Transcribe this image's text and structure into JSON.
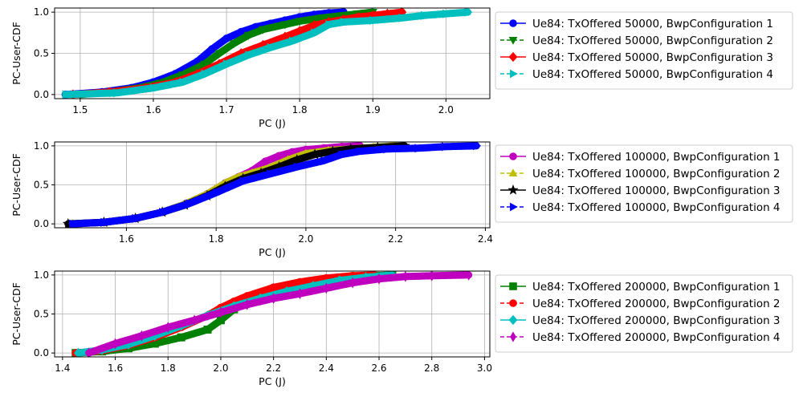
{
  "chart_data": [
    {
      "type": "line",
      "title": "",
      "xlabel": "PC (J)",
      "ylabel": "PC-User-CDF",
      "xlim": [
        1.465,
        2.06
      ],
      "ylim": [
        -0.05,
        1.05
      ],
      "xticks": [
        1.5,
        1.6,
        1.7,
        1.8,
        1.9,
        2.0
      ],
      "xtick_labels": [
        "1.5",
        "1.6",
        "1.7",
        "1.8",
        "1.9",
        "2.0"
      ],
      "yticks": [
        0.0,
        0.5,
        1.0
      ],
      "ytick_labels": [
        "0.0",
        "0.5",
        "1.0"
      ],
      "grid": true,
      "legend_position": "outside-right",
      "series": [
        {
          "name": "Ue84: TxOffered 50000, BwpConfiguration 1",
          "color": "#0000ff",
          "linestyle": "solid",
          "marker": "circle",
          "x": [
            1.48,
            1.53,
            1.57,
            1.6,
            1.63,
            1.66,
            1.68,
            1.7,
            1.72,
            1.74,
            1.76,
            1.78,
            1.8,
            1.82,
            1.84,
            1.86
          ],
          "y": [
            0.0,
            0.03,
            0.08,
            0.15,
            0.25,
            0.4,
            0.55,
            0.68,
            0.76,
            0.82,
            0.86,
            0.9,
            0.94,
            0.97,
            0.99,
            1.0
          ]
        },
        {
          "name": "Ue84: TxOffered 50000, BwpConfiguration 2",
          "color": "#008000",
          "linestyle": "dashed",
          "marker": "triangle-down",
          "x": [
            1.5,
            1.54,
            1.58,
            1.61,
            1.64,
            1.67,
            1.69,
            1.71,
            1.73,
            1.75,
            1.78,
            1.8,
            1.83,
            1.86,
            1.88,
            1.9
          ],
          "y": [
            0.0,
            0.03,
            0.08,
            0.14,
            0.24,
            0.37,
            0.5,
            0.62,
            0.72,
            0.79,
            0.85,
            0.89,
            0.93,
            0.96,
            0.98,
            1.0
          ]
        },
        {
          "name": "Ue84: TxOffered 50000, BwpConfiguration 3",
          "color": "#ff0000",
          "linestyle": "solid",
          "marker": "diamond",
          "x": [
            1.49,
            1.54,
            1.59,
            1.63,
            1.66,
            1.69,
            1.72,
            1.75,
            1.78,
            1.8,
            1.82,
            1.84,
            1.86,
            1.88,
            1.9,
            1.92,
            1.94
          ],
          "y": [
            0.0,
            0.03,
            0.08,
            0.15,
            0.25,
            0.37,
            0.5,
            0.6,
            0.7,
            0.77,
            0.84,
            0.88,
            0.91,
            0.94,
            0.96,
            0.98,
            1.0
          ]
        },
        {
          "name": "Ue84: TxOffered 50000, BwpConfiguration 4",
          "color": "#00bfbf",
          "linestyle": "dashed",
          "marker": "triangle-right",
          "x": [
            1.48,
            1.55,
            1.6,
            1.64,
            1.67,
            1.7,
            1.73,
            1.76,
            1.79,
            1.82,
            1.84,
            1.86,
            1.9,
            1.94,
            1.97,
            2.0,
            2.03
          ],
          "y": [
            0.0,
            0.02,
            0.08,
            0.15,
            0.25,
            0.37,
            0.48,
            0.57,
            0.65,
            0.75,
            0.85,
            0.88,
            0.9,
            0.93,
            0.96,
            0.98,
            1.0
          ]
        }
      ]
    },
    {
      "type": "line",
      "title": "",
      "xlabel": "PC (J)",
      "ylabel": "PC-User-CDF",
      "xlim": [
        1.44,
        2.41
      ],
      "ylim": [
        -0.05,
        1.05
      ],
      "xticks": [
        1.6,
        1.8,
        2.0,
        2.2,
        2.4
      ],
      "xtick_labels": [
        "1.6",
        "1.8",
        "2.0",
        "2.2",
        "2.4"
      ],
      "yticks": [
        0.0,
        0.5,
        1.0
      ],
      "ytick_labels": [
        "0.0",
        "0.5",
        "1.0"
      ],
      "grid": true,
      "legend_position": "outside-right",
      "series": [
        {
          "name": "Ue84: TxOffered 100000, BwpConfiguration 1",
          "color": "#bf00bf",
          "linestyle": "solid",
          "marker": "hexagon",
          "x": [
            1.48,
            1.55,
            1.62,
            1.68,
            1.73,
            1.78,
            1.82,
            1.85,
            1.88,
            1.91,
            1.94,
            1.97,
            2.0,
            2.04,
            2.08,
            2.12
          ],
          "y": [
            0.0,
            0.02,
            0.07,
            0.15,
            0.25,
            0.38,
            0.52,
            0.6,
            0.68,
            0.8,
            0.87,
            0.92,
            0.95,
            0.97,
            0.99,
            1.0
          ]
        },
        {
          "name": "Ue84: TxOffered 100000, BwpConfiguration 2",
          "color": "#bfbf00",
          "linestyle": "dashed",
          "marker": "triangle-up",
          "x": [
            1.48,
            1.55,
            1.62,
            1.68,
            1.73,
            1.78,
            1.82,
            1.85,
            1.88,
            1.92,
            1.96,
            2.0,
            2.05,
            2.1,
            2.15,
            2.2
          ],
          "y": [
            0.0,
            0.02,
            0.07,
            0.15,
            0.25,
            0.38,
            0.52,
            0.6,
            0.65,
            0.72,
            0.82,
            0.9,
            0.94,
            0.96,
            0.98,
            1.0
          ]
        },
        {
          "name": "Ue84: TxOffered 100000, BwpConfiguration 3",
          "color": "#000000",
          "linestyle": "solid",
          "marker": "star",
          "x": [
            1.47,
            1.55,
            1.62,
            1.68,
            1.73,
            1.78,
            1.82,
            1.86,
            1.9,
            1.94,
            1.98,
            2.02,
            2.06,
            2.1,
            2.16,
            2.22
          ],
          "y": [
            0.0,
            0.02,
            0.07,
            0.15,
            0.24,
            0.36,
            0.48,
            0.58,
            0.65,
            0.73,
            0.82,
            0.89,
            0.93,
            0.96,
            0.98,
            1.0
          ]
        },
        {
          "name": "Ue84: TxOffered 100000, BwpConfiguration 4",
          "color": "#0000ff",
          "linestyle": "dashed",
          "marker": "triangle-right",
          "x": [
            1.48,
            1.55,
            1.62,
            1.68,
            1.74,
            1.8,
            1.86,
            1.92,
            1.98,
            2.04,
            2.08,
            2.12,
            2.18,
            2.25,
            2.31,
            2.38
          ],
          "y": [
            0.0,
            0.02,
            0.07,
            0.15,
            0.26,
            0.4,
            0.55,
            0.64,
            0.73,
            0.81,
            0.89,
            0.93,
            0.96,
            0.97,
            0.99,
            1.0
          ]
        }
      ]
    },
    {
      "type": "line",
      "title": "",
      "xlabel": "PC (J)",
      "ylabel": "PC-User-CDF",
      "xlim": [
        1.37,
        3.02
      ],
      "ylim": [
        -0.05,
        1.05
      ],
      "xticks": [
        1.4,
        1.6,
        1.8,
        2.0,
        2.2,
        2.4,
        2.6,
        2.8,
        3.0
      ],
      "xtick_labels": [
        "1.4",
        "1.6",
        "1.8",
        "2.0",
        "2.2",
        "2.4",
        "2.6",
        "2.8",
        "3.0"
      ],
      "yticks": [
        0.0,
        0.5,
        1.0
      ],
      "ytick_labels": [
        "0.0",
        "0.5",
        "1.0"
      ],
      "grid": true,
      "legend_position": "outside-right",
      "series": [
        {
          "name": "Ue84: TxOffered 200000, BwpConfiguration 1",
          "color": "#008000",
          "linestyle": "solid",
          "marker": "square",
          "x": [
            1.45,
            1.55,
            1.65,
            1.75,
            1.85,
            1.95,
            2.0,
            2.05,
            2.1,
            2.2,
            2.3,
            2.4,
            2.5,
            2.58,
            2.65
          ],
          "y": [
            0.0,
            0.02,
            0.06,
            0.12,
            0.2,
            0.3,
            0.42,
            0.56,
            0.65,
            0.75,
            0.85,
            0.92,
            0.96,
            0.99,
            1.0
          ]
        },
        {
          "name": "Ue84: TxOffered 200000, BwpConfiguration 2",
          "color": "#ff0000",
          "linestyle": "dashed",
          "marker": "octagon",
          "x": [
            1.45,
            1.55,
            1.65,
            1.75,
            1.85,
            1.95,
            2.0,
            2.05,
            2.1,
            2.2,
            2.3,
            2.4,
            2.5,
            2.58
          ],
          "y": [
            0.0,
            0.03,
            0.1,
            0.2,
            0.33,
            0.48,
            0.58,
            0.66,
            0.73,
            0.84,
            0.91,
            0.96,
            0.99,
            1.0
          ]
        },
        {
          "name": "Ue84: TxOffered 200000, BwpConfiguration 3",
          "color": "#00bfbf",
          "linestyle": "solid",
          "marker": "diamond",
          "x": [
            1.46,
            1.55,
            1.65,
            1.75,
            1.85,
            1.95,
            2.05,
            2.15,
            2.25,
            2.35,
            2.45,
            2.55,
            2.65
          ],
          "y": [
            0.0,
            0.04,
            0.11,
            0.22,
            0.35,
            0.48,
            0.6,
            0.7,
            0.79,
            0.86,
            0.93,
            0.97,
            1.0
          ]
        },
        {
          "name": "Ue84: TxOffered 200000, BwpConfiguration 4",
          "color": "#bf00bf",
          "linestyle": "dashed",
          "marker": "thin-diamond",
          "x": [
            1.5,
            1.6,
            1.7,
            1.8,
            1.9,
            2.0,
            2.1,
            2.2,
            2.3,
            2.4,
            2.5,
            2.6,
            2.7,
            2.8,
            2.94
          ],
          "y": [
            0.0,
            0.12,
            0.22,
            0.33,
            0.42,
            0.52,
            0.62,
            0.7,
            0.76,
            0.83,
            0.9,
            0.95,
            0.98,
            0.99,
            1.0
          ]
        }
      ]
    }
  ]
}
